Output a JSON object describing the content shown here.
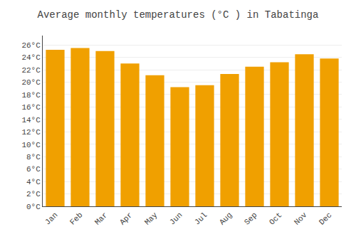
{
  "chart_data": {
    "type": "bar",
    "title": "Average monthly temperatures (°C ) in Tabatinga",
    "categories": [
      "Jan",
      "Feb",
      "Mar",
      "Apr",
      "May",
      "Jun",
      "Jul",
      "Aug",
      "Sep",
      "Oct",
      "Nov",
      "Dec"
    ],
    "values": [
      25.2,
      25.5,
      25.0,
      23.0,
      21.1,
      19.2,
      19.5,
      21.3,
      22.5,
      23.2,
      24.5,
      23.8
    ],
    "color": "#F0A000",
    "ylim": [
      0,
      27.5
    ],
    "yticks": [
      {
        "value": 0,
        "label": "0°C"
      },
      {
        "value": 2,
        "label": "2°C"
      },
      {
        "value": 4,
        "label": "4°C"
      },
      {
        "value": 6,
        "label": "6°C"
      },
      {
        "value": 8,
        "label": "8°C"
      },
      {
        "value": 10,
        "label": "10°C"
      },
      {
        "value": 12,
        "label": "12°C"
      },
      {
        "value": 14,
        "label": "14°C"
      },
      {
        "value": 16,
        "label": "16°C"
      },
      {
        "value": 18,
        "label": "18°C"
      },
      {
        "value": 20,
        "label": "20°C"
      },
      {
        "value": 22,
        "label": "22°C"
      },
      {
        "value": 24,
        "label": "24°C"
      },
      {
        "value": 26,
        "label": "26°C"
      }
    ],
    "grid": true
  }
}
